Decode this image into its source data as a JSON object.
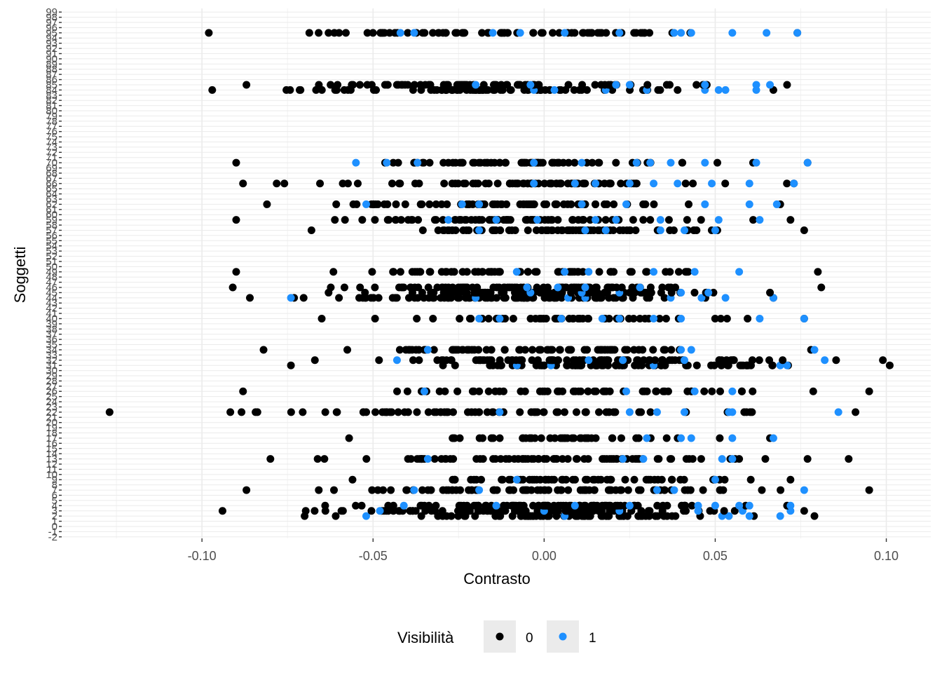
{
  "chart_data": {
    "type": "scatter",
    "title": "",
    "xlabel": "Contrasto",
    "ylabel": "Soggetti",
    "xlim": [
      -0.141,
      0.113
    ],
    "ylim": [
      -2.3,
      99.7
    ],
    "x_ticks": [
      -0.1,
      -0.05,
      0.0,
      0.05,
      0.1
    ],
    "x_tick_labels": [
      "-0.10",
      "-0.05",
      "0.00",
      "0.05",
      "0.10"
    ],
    "y_tick_min": -2,
    "y_tick_max": 99,
    "grid": true,
    "legend": {
      "title": "Visibilità",
      "placement": "bottom",
      "entries": [
        {
          "label": "0",
          "color": "#000000"
        },
        {
          "label": "1",
          "color": "#1e90ff"
        }
      ]
    },
    "colors": {
      "0": "#000000",
      "1": "#1e90ff"
    },
    "subjects": [
      {
        "y": 2,
        "xmin": -0.07,
        "xmax": 0.079,
        "n": 70,
        "blue": [
          -0.052,
          0.006,
          0.052,
          0.054,
          0.06,
          0.069
        ]
      },
      {
        "y": 3,
        "xmin": -0.094,
        "xmax": 0.076,
        "n": 90,
        "blue": [
          -0.048,
          0.0,
          0.022,
          0.045,
          0.058,
          0.072
        ]
      },
      {
        "y": 4,
        "xmin": -0.064,
        "xmax": 0.071,
        "n": 80,
        "blue": [
          -0.041,
          -0.014,
          0.009,
          0.025,
          0.045,
          0.05,
          0.057,
          0.06,
          0.072
        ]
      },
      {
        "y": 7,
        "xmin": -0.087,
        "xmax": 0.095,
        "n": 80,
        "blue": [
          -0.038,
          -0.019,
          0.033,
          0.038,
          0.076
        ]
      },
      {
        "y": 9,
        "xmin": -0.056,
        "xmax": 0.072,
        "n": 55,
        "blue": [
          -0.008,
          0.05
        ]
      },
      {
        "y": 13,
        "xmin": -0.08,
        "xmax": 0.089,
        "n": 80,
        "blue": [
          -0.034,
          0.023,
          0.029,
          0.052,
          0.055
        ]
      },
      {
        "y": 17,
        "xmin": -0.057,
        "xmax": 0.066,
        "n": 45,
        "blue": [
          0.03,
          0.04,
          0.043,
          0.055,
          0.067
        ]
      },
      {
        "y": 22,
        "xmin": -0.127,
        "xmax": 0.091,
        "n": 70,
        "blue": [
          -0.013,
          0.025,
          0.033,
          0.041,
          0.054,
          0.055,
          0.086
        ]
      },
      {
        "y": 26,
        "xmin": -0.088,
        "xmax": 0.095,
        "n": 55,
        "blue": [
          -0.035,
          0.024,
          0.044,
          0.055
        ]
      },
      {
        "y": 31,
        "xmin": -0.074,
        "xmax": 0.101,
        "n": 75,
        "blue": [
          -0.008,
          0.002,
          0.032,
          0.069,
          0.071
        ]
      },
      {
        "y": 32,
        "xmin": -0.067,
        "xmax": 0.099,
        "n": 85,
        "blue": [
          -0.043,
          0.013,
          0.023,
          0.041,
          0.082
        ]
      },
      {
        "y": 34,
        "xmin": -0.082,
        "xmax": 0.078,
        "n": 65,
        "blue": [
          -0.034,
          0.04,
          0.043,
          0.079
        ]
      },
      {
        "y": 40,
        "xmin": -0.065,
        "xmax": 0.076,
        "n": 50,
        "blue": [
          -0.019,
          -0.013,
          0.005,
          0.017,
          0.022,
          0.032,
          0.04,
          0.063,
          0.076
        ]
      },
      {
        "y": 44,
        "xmin": -0.086,
        "xmax": 0.067,
        "n": 80,
        "blue": [
          -0.074,
          -0.02,
          0.007,
          0.012,
          0.037,
          0.046,
          0.053,
          0.067
        ]
      },
      {
        "y": 45,
        "xmin": -0.063,
        "xmax": 0.066,
        "n": 85,
        "blue": [
          -0.004,
          0.011,
          0.022,
          0.04,
          0.048
        ]
      },
      {
        "y": 46,
        "xmin": -0.091,
        "xmax": 0.081,
        "n": 80,
        "blue": [
          -0.005,
          0.004,
          0.012,
          0.028
        ]
      },
      {
        "y": 49,
        "xmin": -0.09,
        "xmax": 0.08,
        "n": 60,
        "blue": [
          -0.008,
          0.006,
          0.013,
          0.032,
          0.044,
          0.057
        ]
      },
      {
        "y": 57,
        "xmin": -0.068,
        "xmax": 0.076,
        "n": 75,
        "blue": [
          -0.019,
          0.012,
          0.018,
          0.034,
          0.041,
          0.05
        ]
      },
      {
        "y": 59,
        "xmin": -0.09,
        "xmax": 0.072,
        "n": 75,
        "blue": [
          -0.028,
          -0.014,
          -0.002,
          0.015,
          0.021,
          0.034,
          0.051,
          0.063
        ]
      },
      {
        "y": 62,
        "xmin": -0.081,
        "xmax": 0.069,
        "n": 70,
        "blue": [
          -0.052,
          -0.024,
          -0.019,
          0.011,
          0.024,
          0.047,
          0.06,
          0.068
        ]
      },
      {
        "y": 66,
        "xmin": -0.088,
        "xmax": 0.073,
        "n": 75,
        "blue": [
          -0.003,
          0.009,
          0.015,
          0.025,
          0.032,
          0.039,
          0.049,
          0.06,
          0.073
        ]
      },
      {
        "y": 70,
        "xmin": -0.09,
        "xmax": 0.077,
        "n": 65,
        "blue": [
          -0.055,
          -0.046,
          -0.037,
          -0.003,
          0.011,
          0.027,
          0.031,
          0.037,
          0.047,
          0.062,
          0.077
        ]
      },
      {
        "y": 84,
        "xmin": -0.097,
        "xmax": 0.067,
        "n": 75,
        "blue": [
          -0.003,
          0.003,
          0.018,
          0.03,
          0.047,
          0.051,
          0.053,
          0.062
        ]
      },
      {
        "y": 85,
        "xmin": -0.087,
        "xmax": 0.071,
        "n": 70,
        "blue": [
          -0.02,
          -0.004,
          0.021,
          0.025,
          0.047,
          0.062,
          0.066
        ]
      },
      {
        "y": 95,
        "xmin": -0.098,
        "xmax": 0.074,
        "n": 75,
        "blue": [
          -0.042,
          -0.038,
          -0.015,
          -0.007,
          0.006,
          0.022,
          0.038,
          0.04,
          0.043,
          0.055,
          0.065,
          0.074
        ]
      }
    ]
  }
}
